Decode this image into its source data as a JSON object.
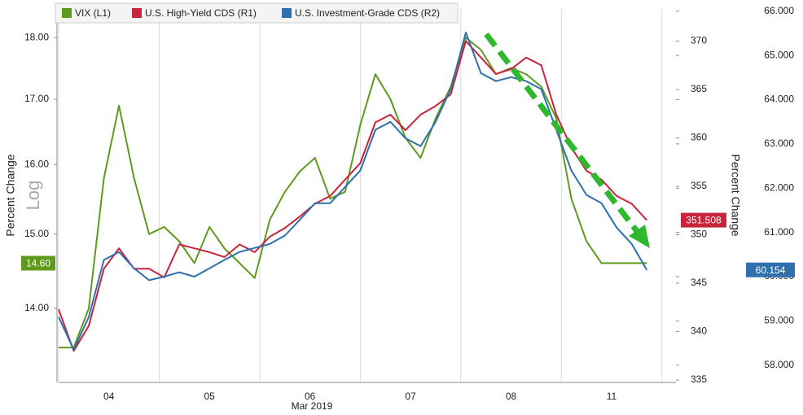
{
  "chart_data": {
    "type": "line",
    "ylabel": "Percent Change",
    "ylabel_note": "Log",
    "y2label": "Percent Change",
    "xlabel": "Mar 2019",
    "x": [
      0,
      0.15,
      0.3,
      0.45,
      0.6,
      0.75,
      0.9,
      1.05,
      1.2,
      1.35,
      1.5,
      1.65,
      1.8,
      1.95,
      2.1,
      2.25,
      2.4,
      2.55,
      2.7,
      2.85,
      3.0,
      3.15,
      3.3,
      3.45,
      3.6,
      3.75,
      3.9,
      4.05,
      4.2,
      4.35,
      4.5,
      4.65,
      4.8,
      4.95,
      5.1,
      5.25,
      5.4,
      5.55,
      5.7,
      5.85
    ],
    "xlim": [
      0,
      6.14
    ],
    "xticks": [
      {
        "value": 0.5,
        "label": "04"
      },
      {
        "value": 1.5,
        "label": "05"
      },
      {
        "value": 2.5,
        "label": "06"
      },
      {
        "value": 3.5,
        "label": "07"
      },
      {
        "value": 4.5,
        "label": "08"
      },
      {
        "value": 5.5,
        "label": "11"
      }
    ],
    "xgrid": true,
    "ylim": [
      13.07,
      18.5
    ],
    "yscale": "log",
    "yticks": [
      {
        "value": 14,
        "label": "14.00"
      },
      {
        "value": 15,
        "label": "15.00"
      },
      {
        "value": 16,
        "label": "16.00"
      },
      {
        "value": 17,
        "label": "17.00"
      },
      {
        "value": 18,
        "label": "18.00"
      }
    ],
    "y2lim": [
      334.75,
      373.4
    ],
    "y2ticks": [
      335,
      340,
      345,
      350,
      355,
      360,
      365,
      370
    ],
    "y3lim": [
      57.61,
      66.07
    ],
    "y3ticks": [
      {
        "value": 58,
        "label": "58.000"
      },
      {
        "value": 59,
        "label": "59.000"
      },
      {
        "value": 60,
        "label": "60.000"
      },
      {
        "value": 61,
        "label": "61.000"
      },
      {
        "value": 62,
        "label": "62.000"
      },
      {
        "value": 63,
        "label": "63.000"
      },
      {
        "value": 64,
        "label": "64.000"
      },
      {
        "value": 65,
        "label": "65.000"
      },
      {
        "value": 66,
        "label": "66.000"
      }
    ],
    "series": [
      {
        "name": "VIX (L1)",
        "color": "#5f9a1c",
        "axis": "y",
        "last_label": "14.60",
        "values": [
          13.5,
          13.5,
          14.0,
          15.8,
          16.9,
          15.8,
          15.0,
          15.1,
          14.9,
          14.6,
          15.1,
          14.8,
          14.6,
          14.4,
          15.2,
          15.6,
          15.9,
          16.1,
          15.5,
          15.6,
          16.6,
          17.4,
          17.0,
          16.4,
          16.1,
          16.7,
          17.2,
          18.0,
          17.8,
          17.4,
          17.5,
          17.4,
          17.2,
          16.7,
          15.5,
          14.9,
          14.6,
          14.6,
          14.6,
          14.6
        ]
      },
      {
        "name": "U.S. High-Yield CDS (R1)",
        "color": "#c8243c",
        "axis": "y2",
        "last_label": "351.508",
        "values": [
          342.3,
          338,
          340.6,
          346.5,
          348.6,
          346.5,
          346.5,
          345.6,
          349,
          348.6,
          348.2,
          347.7,
          349,
          348.2,
          349.8,
          350.7,
          351.9,
          353.2,
          354,
          355.7,
          357.4,
          361.6,
          362.4,
          360.8,
          362.4,
          363.3,
          364.5,
          370,
          368.3,
          366.6,
          367.1,
          368.3,
          367.5,
          362.4,
          359,
          356.6,
          355.7,
          354,
          353.2,
          351.508
        ]
      },
      {
        "name": "U.S. Investment-Grade CDS (R2)",
        "color": "#2e6fae",
        "axis": "y3",
        "last_label": "60.154",
        "values": [
          59.09,
          58.35,
          59.09,
          60.38,
          60.56,
          60.19,
          59.92,
          60.0,
          60.1,
          60.0,
          60.19,
          60.38,
          60.56,
          60.65,
          60.74,
          60.93,
          61.29,
          61.66,
          61.66,
          62.03,
          62.4,
          63.32,
          63.5,
          63.13,
          62.95,
          63.5,
          64.24,
          65.52,
          64.6,
          64.42,
          64.51,
          64.42,
          64.24,
          63.32,
          62.4,
          61.85,
          61.66,
          61.11,
          60.74,
          60.154
        ]
      }
    ]
  }
}
